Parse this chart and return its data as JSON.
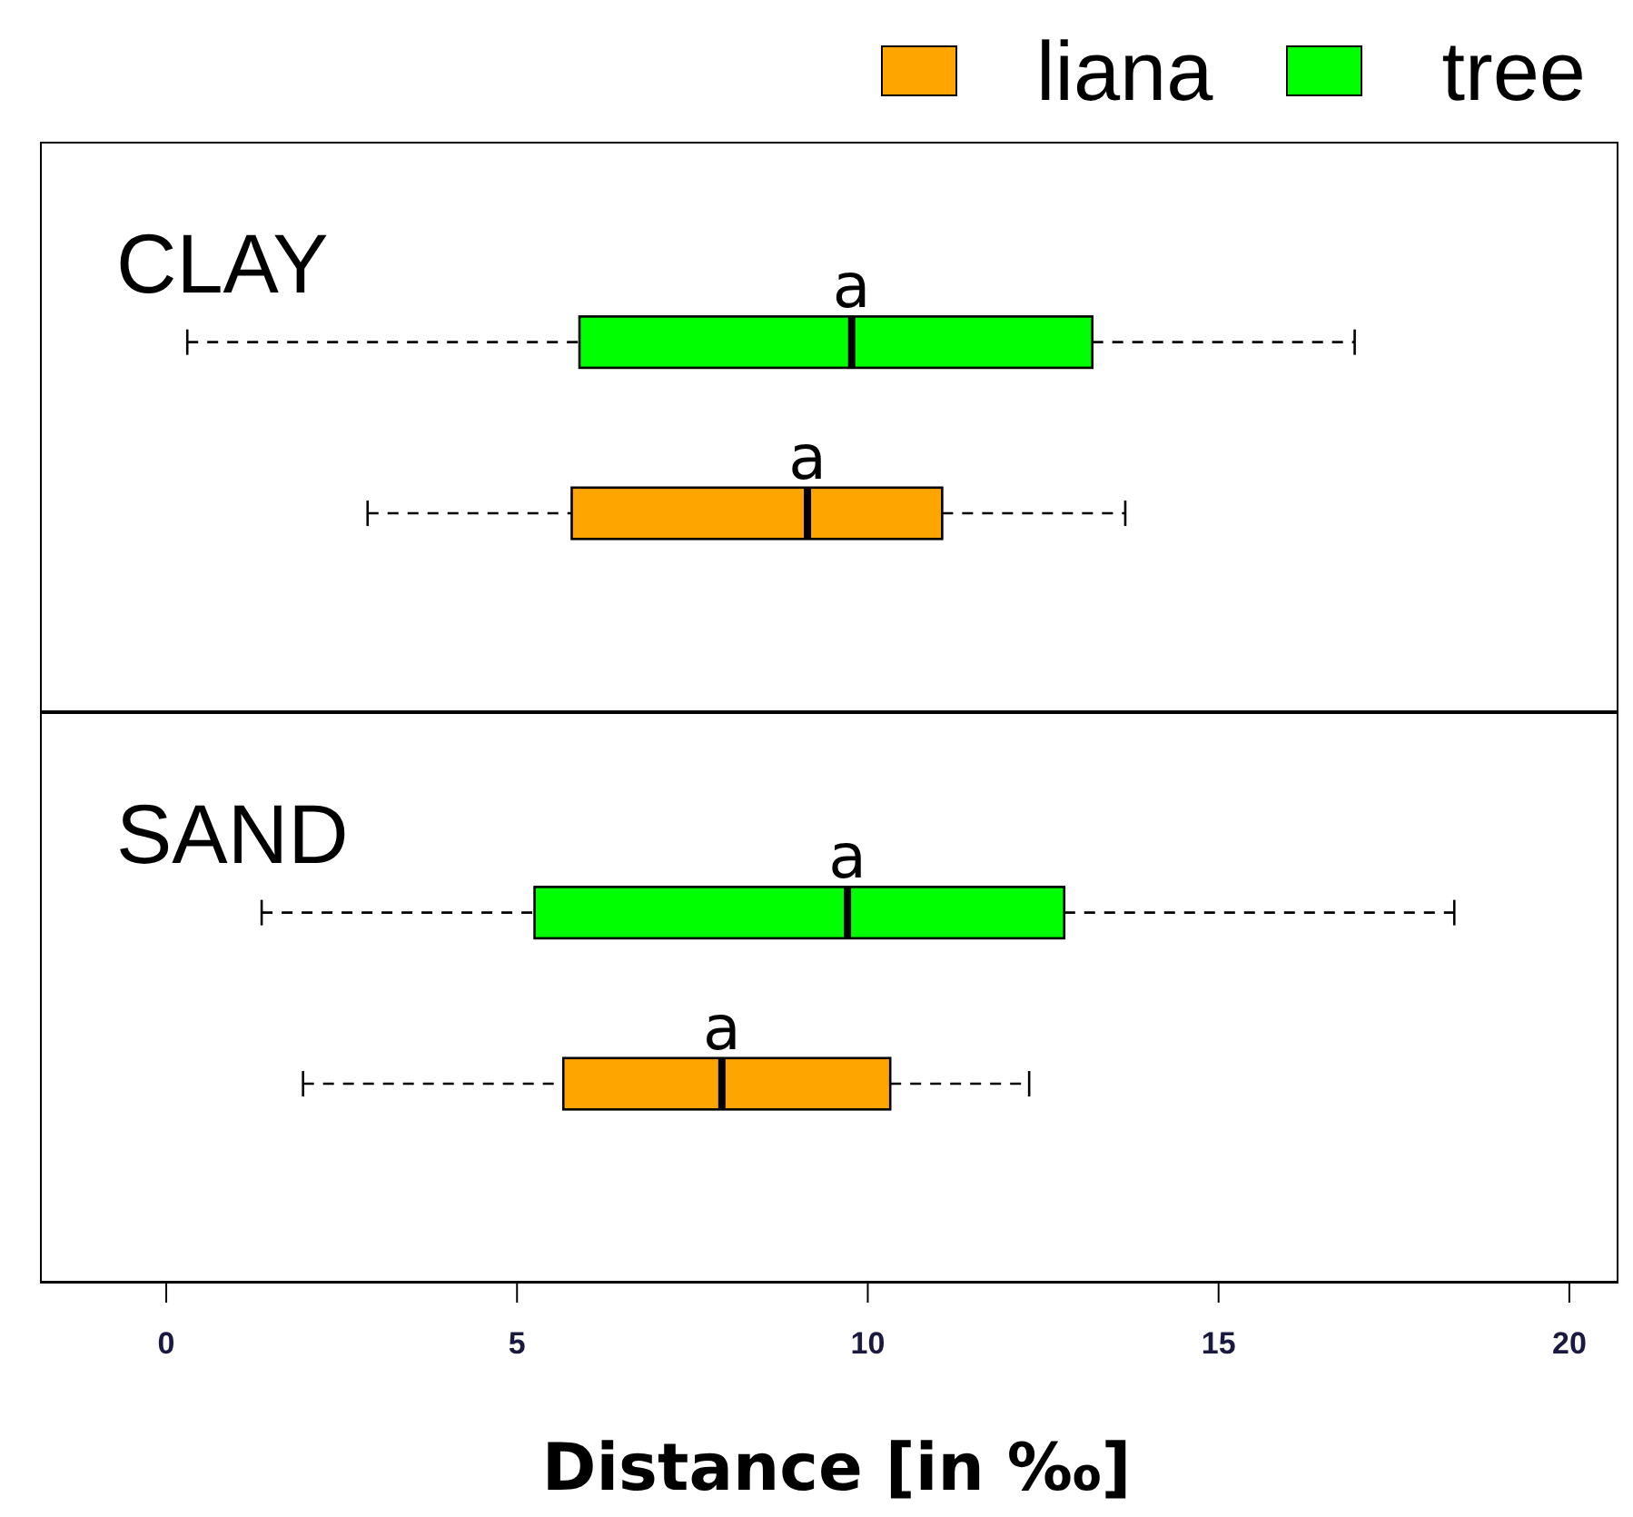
{
  "chart_data": {
    "type": "box",
    "orientation": "horizontal",
    "categories": [
      "CLAY",
      "SAND"
    ],
    "xlabel": "Distance [in ‰]",
    "xlim": [
      -1.8,
      20.7
    ],
    "xticks": [
      0,
      5,
      10,
      15,
      20
    ],
    "legend": "top right",
    "series": [
      {
        "name": "liana",
        "color": "#ffa500",
        "boxes": [
          {
            "low": 2.87,
            "q1": 5.78,
            "median": 9.14,
            "q3": 11.06,
            "high": 13.67
          },
          {
            "low": 1.95,
            "q1": 5.66,
            "median": 7.92,
            "q3": 10.32,
            "high": 12.3
          }
        ]
      },
      {
        "name": "tree",
        "color": "#00ff00",
        "boxes": [
          {
            "low": 0.3,
            "q1": 5.89,
            "median": 9.77,
            "q3": 13.2,
            "high": 16.94
          },
          {
            "low": 1.36,
            "q1": 5.25,
            "median": 9.71,
            "q3": 12.8,
            "high": 18.36
          }
        ]
      }
    ],
    "annotations": [
      "a",
      "a",
      "a",
      "a"
    ]
  }
}
